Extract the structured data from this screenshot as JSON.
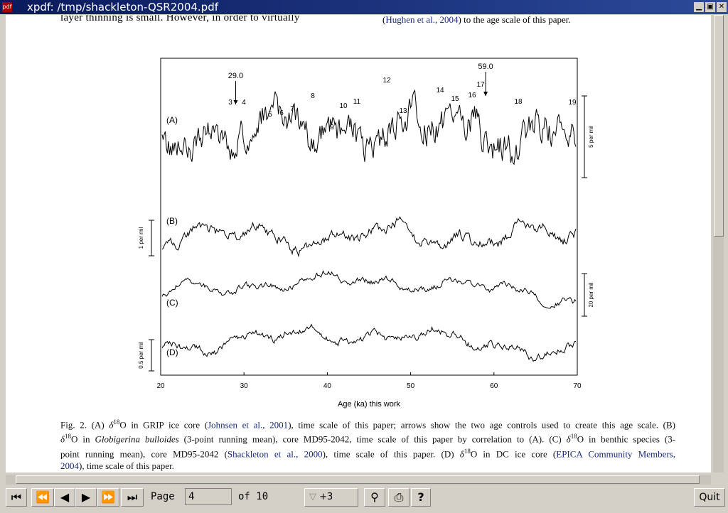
{
  "window_title": "xpdf: /tmp/shackleton-QSR2004.pdf",
  "body_text": {
    "left": "layer thinning is small. However, in order to virtually",
    "right_link": "Hughen et al., 2004",
    "right_open": "(",
    "right_rest": ") to the age scale of this paper."
  },
  "figure": {
    "xlim": [
      20,
      70
    ],
    "xticks": [
      20,
      30,
      40,
      50,
      60,
      70
    ],
    "xlabel": "Age (ka) this work",
    "panels": [
      "(A)",
      "(B)",
      "(C)",
      "(D)"
    ],
    "scale_bars": [
      "5 per mil",
      "1 per mil",
      "20 per mil",
      "0.5 per mil"
    ],
    "events": [
      "3",
      "4",
      "5",
      "6",
      "7",
      "8",
      "9",
      "10",
      "11",
      "12",
      "13",
      "14",
      "15",
      "16",
      "17",
      "18",
      "19"
    ],
    "age_controls": [
      {
        "value": 29.0,
        "label": "29.0"
      },
      {
        "value": 59.0,
        "label": "59.0"
      }
    ]
  },
  "caption": [
    [
      "Fig. 2.  (A) ",
      "δ",
      "18",
      "O in GRIP ice core (",
      "Johnsen et al., 2001",
      "), time scale of this paper; arrows show the two age controls used to create this age scale. (B)"
    ],
    [
      "δ",
      "18",
      "O in ",
      "Globigerina bulloides",
      " (3-point running mean), core MD95-2042, time scale of this paper by correlation to (A). (C) ",
      "δ",
      "18",
      "O in benthic species (3-"
    ],
    [
      "point running mean), core MD95-2042 (",
      "Shackleton et al., 2000",
      "), time scale of this paper. (D) ",
      "δ",
      "18",
      "O in DC ice core (",
      "EPICA Community Members,"
    ],
    [
      "2004",
      "), time scale of this paper."
    ]
  ],
  "toolbar": {
    "page_label": "Page",
    "page_number": "4",
    "page_count": "of 10",
    "zoom": "+3",
    "quit": "Quit"
  }
}
